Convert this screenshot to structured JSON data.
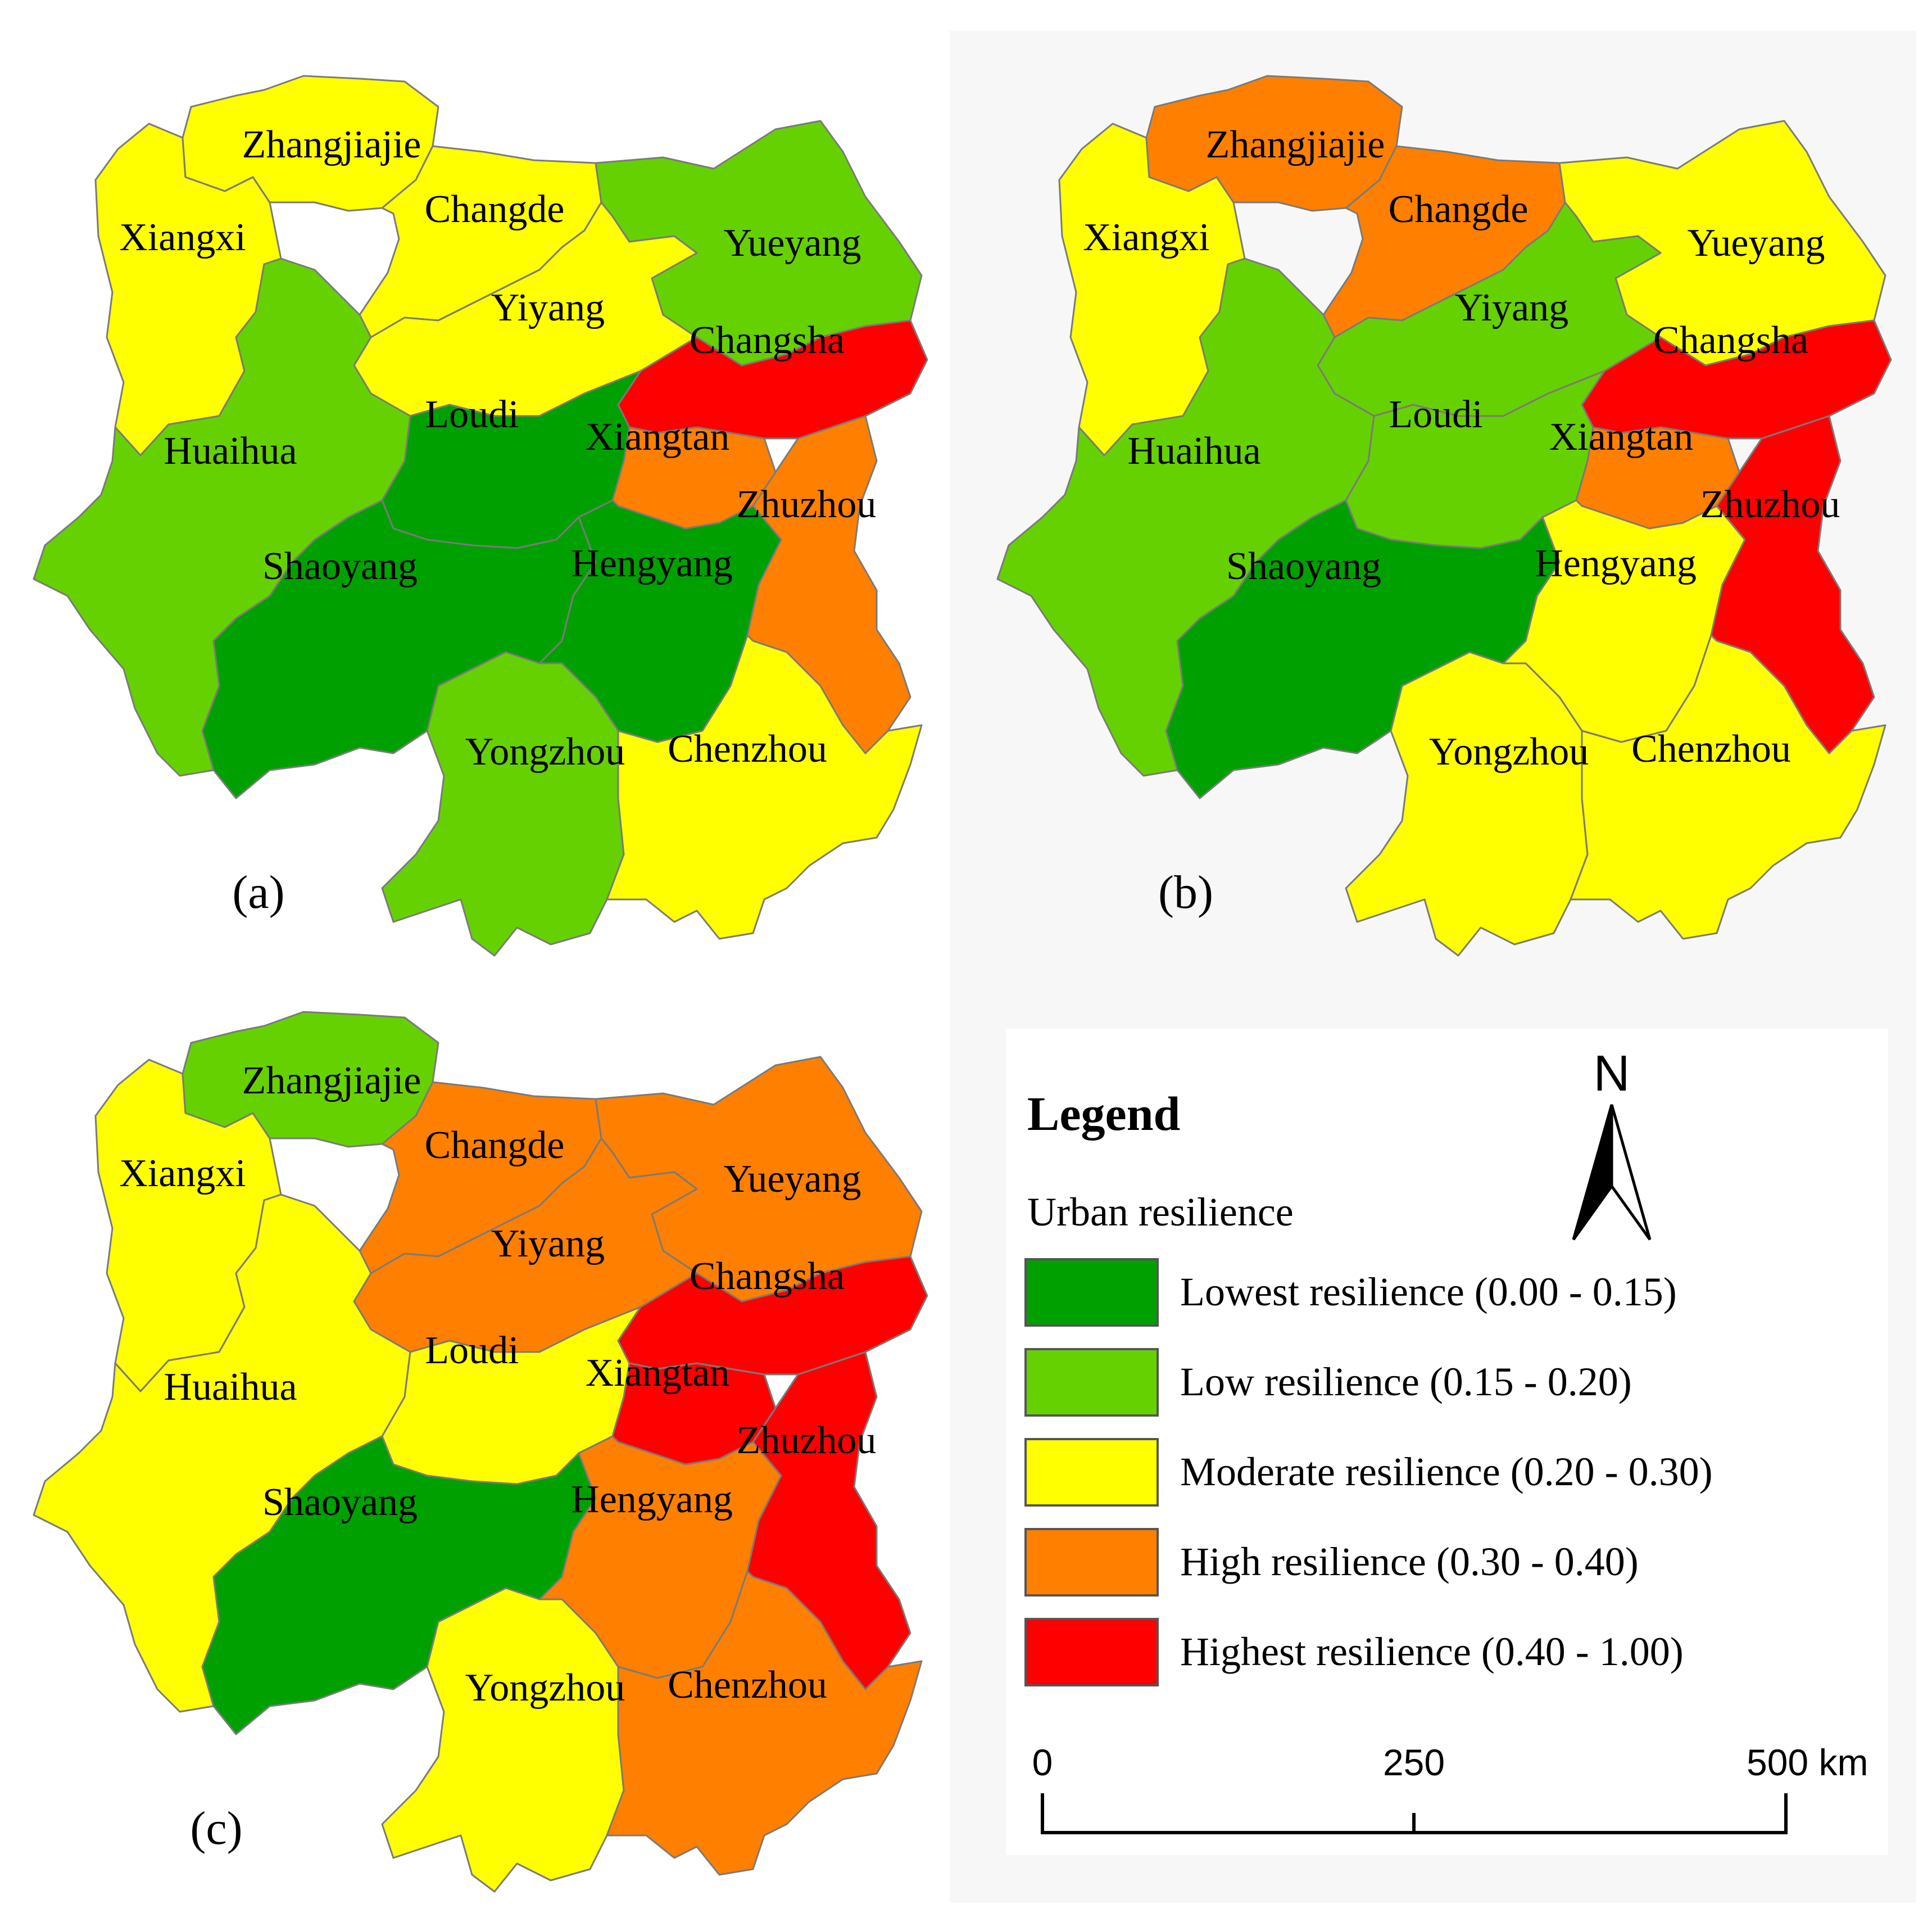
{
  "colors": {
    "lowest": "#00a000",
    "low": "#66d100",
    "moderate": "#ffff00",
    "high": "#ff8000",
    "highest": "#ff0000"
  },
  "panels": [
    {
      "label": "(a)",
      "cities": {
        "Zhangjiajie": "moderate",
        "Changde": "moderate",
        "Xiangxi": "moderate",
        "Yueyang": "low",
        "Yiyang": "moderate",
        "Changsha": "highest",
        "Loudi": "lowest",
        "Xiangtan": "high",
        "Huaihua": "low",
        "Zhuzhou": "high",
        "Shaoyang": "lowest",
        "Hengyang": "lowest",
        "Yongzhou": "low",
        "Chenzhou": "moderate"
      }
    },
    {
      "label": "(b)",
      "cities": {
        "Zhangjiajie": "high",
        "Changde": "high",
        "Xiangxi": "moderate",
        "Yueyang": "moderate",
        "Yiyang": "low",
        "Changsha": "highest",
        "Loudi": "low",
        "Xiangtan": "high",
        "Huaihua": "low",
        "Zhuzhou": "highest",
        "Shaoyang": "lowest",
        "Hengyang": "moderate",
        "Yongzhou": "moderate",
        "Chenzhou": "moderate"
      }
    },
    {
      "label": "(c)",
      "cities": {
        "Zhangjiajie": "low",
        "Changde": "high",
        "Xiangxi": "moderate",
        "Yueyang": "high",
        "Yiyang": "high",
        "Changsha": "highest",
        "Loudi": "moderate",
        "Xiangtan": "highest",
        "Huaihua": "moderate",
        "Zhuzhou": "highest",
        "Shaoyang": "lowest",
        "Hengyang": "high",
        "Yongzhou": "moderate",
        "Chenzhou": "high"
      }
    }
  ],
  "legend": {
    "title": "Legend",
    "subtitle": "Urban resilience",
    "items": [
      {
        "class": "lowest",
        "label": "Lowest resilience (0.00 - 0.15)"
      },
      {
        "class": "low",
        "label": "Low resilience (0.15 - 0.20)"
      },
      {
        "class": "moderate",
        "label": "Moderate resilience (0.20 - 0.30)"
      },
      {
        "class": "high",
        "label": "High resilience (0.30 - 0.40)"
      },
      {
        "class": "highest",
        "label": "Highest resilience (0.40 - 1.00)"
      }
    ],
    "north_label": "N",
    "scale": {
      "ticks": [
        "0",
        "250",
        "500 km"
      ]
    }
  }
}
